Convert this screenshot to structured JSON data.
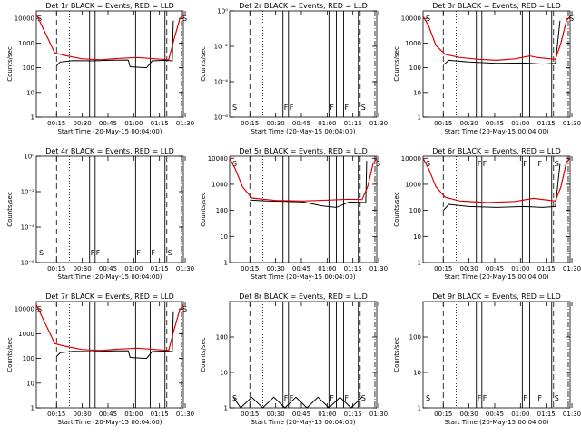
{
  "figure": {
    "background": "#ffffff",
    "axis_color": "#000000",
    "events_color": "#000000",
    "lld_color": "#dd0000",
    "xlabel": "Start Time (20-May-15 00:04:00)",
    "ylabel": "Counts/sec"
  },
  "chart_data": [
    {
      "type": "line",
      "panel": "det1",
      "title": "Det 1r BLACK = Events, RED = LLD",
      "yscale": "log",
      "ylim": [
        1,
        20000
      ],
      "ytick_values": [
        1,
        10,
        100,
        1000,
        10000
      ],
      "ytick_labels": [
        "1",
        "10",
        "100",
        "1000",
        "10000"
      ],
      "xtick_labels": [
        "00:15",
        "00:30",
        "00:45",
        "01:00",
        "01:15",
        "01:30"
      ],
      "flags": [
        {
          "label": "S",
          "x": 0
        },
        {
          "label": "S",
          "x": 79
        }
      ],
      "events": [
        {
          "x": 11,
          "y": 120
        },
        {
          "x": 13,
          "y": 170
        },
        {
          "x": 20,
          "y": 195
        },
        {
          "x": 30,
          "y": 190
        },
        {
          "x": 40,
          "y": 200
        },
        {
          "x": 50,
          "y": 205
        },
        {
          "x": 51,
          "y": 110
        },
        {
          "x": 60,
          "y": 100
        },
        {
          "x": 63,
          "y": 190
        },
        {
          "x": 70,
          "y": 200
        },
        {
          "x": 74,
          "y": 190
        },
        {
          "x": 74.5,
          "y": 8000
        }
      ],
      "lld": [
        {
          "x": 0,
          "y": 15000
        },
        {
          "x": 3,
          "y": 5000
        },
        {
          "x": 7,
          "y": 1200
        },
        {
          "x": 10,
          "y": 400
        },
        {
          "x": 15,
          "y": 320
        },
        {
          "x": 25,
          "y": 230
        },
        {
          "x": 35,
          "y": 210
        },
        {
          "x": 45,
          "y": 240
        },
        {
          "x": 55,
          "y": 260
        },
        {
          "x": 65,
          "y": 230
        },
        {
          "x": 72,
          "y": 210
        },
        {
          "x": 75,
          "y": 1500
        },
        {
          "x": 78,
          "y": 9000
        },
        {
          "x": 80,
          "y": 15000
        }
      ]
    },
    {
      "type": "line",
      "panel": "det2",
      "title": "Det 2r BLACK = Events, RED = LLD",
      "yscale": "log",
      "ylim": [
        1,
        1e-06
      ],
      "ytick_values": [
        1,
        0.01,
        0.0001,
        1e-06
      ],
      "ytick_labels": [
        "10⁰",
        "10⁻²",
        "10⁻⁴",
        "10⁻⁶"
      ],
      "xtick_labels": [
        "00:15",
        "00:30",
        "00:45",
        "01:00",
        "01:15",
        "01:30"
      ],
      "flags": [
        {
          "label": "S",
          "x": 1
        },
        {
          "label": "F",
          "x": 29
        },
        {
          "label": "F",
          "x": 32
        },
        {
          "label": "F",
          "x": 54
        },
        {
          "label": "F",
          "x": 62
        },
        {
          "label": "S",
          "x": 71
        }
      ],
      "events": [],
      "lld": []
    },
    {
      "type": "line",
      "panel": "det3",
      "title": "Det 3r BLACK = Events, RED = LLD",
      "yscale": "log",
      "ylim": [
        1,
        20000
      ],
      "ytick_values": [
        1,
        10,
        100,
        1000,
        10000
      ],
      "ytick_labels": [
        "1",
        "10",
        "100",
        "1000",
        "10000"
      ],
      "xtick_labels": [
        "00:15",
        "00:30",
        "00:45",
        "01:00",
        "01:15",
        "01:30"
      ],
      "flags": [
        {
          "label": "S",
          "x": 1
        },
        {
          "label": "S",
          "x": 79
        }
      ],
      "events": [
        {
          "x": 11,
          "y": 130
        },
        {
          "x": 14,
          "y": 200
        },
        {
          "x": 25,
          "y": 170
        },
        {
          "x": 40,
          "y": 150
        },
        {
          "x": 55,
          "y": 155
        },
        {
          "x": 65,
          "y": 140
        },
        {
          "x": 72,
          "y": 150
        },
        {
          "x": 74.5,
          "y": 8000
        }
      ],
      "lld": [
        {
          "x": 0,
          "y": 12000
        },
        {
          "x": 3,
          "y": 5000
        },
        {
          "x": 7,
          "y": 800
        },
        {
          "x": 12,
          "y": 350
        },
        {
          "x": 20,
          "y": 260
        },
        {
          "x": 30,
          "y": 220
        },
        {
          "x": 40,
          "y": 200
        },
        {
          "x": 50,
          "y": 230
        },
        {
          "x": 58,
          "y": 300
        },
        {
          "x": 62,
          "y": 260
        },
        {
          "x": 72,
          "y": 220
        },
        {
          "x": 75,
          "y": 1000
        },
        {
          "x": 78,
          "y": 8000
        },
        {
          "x": 80,
          "y": 12000
        }
      ]
    },
    {
      "type": "line",
      "panel": "det4",
      "title": "Det 4r BLACK = Events, RED = LLD",
      "yscale": "log",
      "ylim": [
        1,
        1e-06
      ],
      "ytick_values": [
        1,
        0.01,
        0.0001,
        1e-06
      ],
      "ytick_labels": [
        "10⁰",
        "10⁻²",
        "10⁻⁴",
        "10⁻⁶"
      ],
      "xtick_labels": [
        "00:15",
        "00:30",
        "00:45",
        "01:00",
        "01:15",
        "01:30"
      ],
      "flags": [
        {
          "label": "S",
          "x": 1
        },
        {
          "label": "F",
          "x": 29
        },
        {
          "label": "F",
          "x": 32
        },
        {
          "label": "F",
          "x": 54
        },
        {
          "label": "F",
          "x": 62
        },
        {
          "label": "S",
          "x": 71
        }
      ],
      "events": [],
      "lld": []
    },
    {
      "type": "line",
      "panel": "det5",
      "title": "Det 5r BLACK = Events, RED = LLD",
      "yscale": "log",
      "ylim": [
        1,
        12000
      ],
      "ytick_values": [
        1,
        10,
        100,
        1000,
        10000
      ],
      "ytick_labels": [
        "1",
        "10",
        "100",
        "1000",
        "10000"
      ],
      "xtick_labels": [
        "00:15",
        "00:30",
        "00:45",
        "01:00",
        "01:15",
        "01:30"
      ],
      "flags": [
        {
          "label": "S",
          "x": 1
        },
        {
          "label": "S",
          "x": 79
        }
      ],
      "events": [
        {
          "x": 11,
          "y": 250
        },
        {
          "x": 20,
          "y": 230
        },
        {
          "x": 30,
          "y": 220
        },
        {
          "x": 40,
          "y": 210
        },
        {
          "x": 50,
          "y": 150
        },
        {
          "x": 58,
          "y": 130
        },
        {
          "x": 65,
          "y": 210
        },
        {
          "x": 74,
          "y": 200
        },
        {
          "x": 74.5,
          "y": 8000
        }
      ],
      "lld": [
        {
          "x": 0,
          "y": 10000
        },
        {
          "x": 3,
          "y": 4000
        },
        {
          "x": 7,
          "y": 800
        },
        {
          "x": 12,
          "y": 300
        },
        {
          "x": 25,
          "y": 240
        },
        {
          "x": 40,
          "y": 230
        },
        {
          "x": 55,
          "y": 250
        },
        {
          "x": 65,
          "y": 270
        },
        {
          "x": 72,
          "y": 260
        },
        {
          "x": 75,
          "y": 800
        },
        {
          "x": 78,
          "y": 6000
        },
        {
          "x": 80,
          "y": 10000
        }
      ]
    },
    {
      "type": "line",
      "panel": "det6",
      "title": "Det 6r BLACK = Events, RED = LLD",
      "yscale": "log",
      "ylim": [
        1,
        12000
      ],
      "ytick_values": [
        1,
        10,
        100,
        1000,
        10000
      ],
      "ytick_labels": [
        "1",
        "10",
        "100",
        "1000",
        "10000"
      ],
      "xtick_labels": [
        "00:15",
        "00:30",
        "00:45",
        "01:00",
        "01:15",
        "01:30"
      ],
      "flags": [
        {
          "label": "S",
          "x": 1
        },
        {
          "label": "F",
          "x": 29
        },
        {
          "label": "F",
          "x": 32
        },
        {
          "label": "F",
          "x": 54
        },
        {
          "label": "F",
          "x": 62
        },
        {
          "label": "S",
          "x": 71
        }
      ],
      "events": [
        {
          "x": 11,
          "y": 100
        },
        {
          "x": 14,
          "y": 170
        },
        {
          "x": 25,
          "y": 140
        },
        {
          "x": 40,
          "y": 130
        },
        {
          "x": 55,
          "y": 140
        },
        {
          "x": 65,
          "y": 130
        },
        {
          "x": 72,
          "y": 140
        },
        {
          "x": 74.5,
          "y": 6000
        }
      ],
      "lld": [
        {
          "x": 0,
          "y": 10000
        },
        {
          "x": 3,
          "y": 4000
        },
        {
          "x": 7,
          "y": 800
        },
        {
          "x": 12,
          "y": 320
        },
        {
          "x": 20,
          "y": 230
        },
        {
          "x": 35,
          "y": 200
        },
        {
          "x": 50,
          "y": 220
        },
        {
          "x": 60,
          "y": 290
        },
        {
          "x": 72,
          "y": 230
        },
        {
          "x": 75,
          "y": 800
        },
        {
          "x": 78,
          "y": 7000
        },
        {
          "x": 80,
          "y": 10000
        }
      ]
    },
    {
      "type": "line",
      "panel": "det7",
      "title": "Det 7r BLACK = Events, RED = LLD",
      "yscale": "log",
      "ylim": [
        1,
        20000
      ],
      "ytick_values": [
        1,
        10,
        100,
        1000,
        10000
      ],
      "ytick_labels": [
        "1",
        "10",
        "100",
        "1000",
        "10000"
      ],
      "xtick_labels": [
        "00:15",
        "00:30",
        "00:45",
        "01:00",
        "01:15",
        "01:30"
      ],
      "flags": [
        {
          "label": "S",
          "x": 0
        },
        {
          "label": "S",
          "x": 79
        }
      ],
      "events": [
        {
          "x": 11,
          "y": 120
        },
        {
          "x": 13,
          "y": 170
        },
        {
          "x": 20,
          "y": 195
        },
        {
          "x": 30,
          "y": 190
        },
        {
          "x": 40,
          "y": 200
        },
        {
          "x": 50,
          "y": 205
        },
        {
          "x": 51,
          "y": 110
        },
        {
          "x": 60,
          "y": 100
        },
        {
          "x": 63,
          "y": 190
        },
        {
          "x": 70,
          "y": 200
        },
        {
          "x": 74,
          "y": 190
        },
        {
          "x": 74.5,
          "y": 8000
        }
      ],
      "lld": [
        {
          "x": 0,
          "y": 15000
        },
        {
          "x": 3,
          "y": 5000
        },
        {
          "x": 7,
          "y": 1200
        },
        {
          "x": 10,
          "y": 400
        },
        {
          "x": 15,
          "y": 320
        },
        {
          "x": 25,
          "y": 230
        },
        {
          "x": 35,
          "y": 210
        },
        {
          "x": 45,
          "y": 240
        },
        {
          "x": 55,
          "y": 260
        },
        {
          "x": 65,
          "y": 230
        },
        {
          "x": 72,
          "y": 210
        },
        {
          "x": 75,
          "y": 1500
        },
        {
          "x": 78,
          "y": 9000
        },
        {
          "x": 80,
          "y": 15000
        }
      ]
    },
    {
      "type": "line",
      "panel": "det8",
      "title": "Det 8r BLACK = Events, RED = LLD",
      "yscale": "log",
      "ylim": [
        1,
        1000
      ],
      "ytick_values": [
        1,
        10,
        100
      ],
      "ytick_labels": [
        "1",
        "10",
        "100"
      ],
      "xtick_labels": [
        "00:15",
        "00:30",
        "00:45",
        "01:00",
        "01:15",
        "01:30"
      ],
      "flags": [
        {
          "label": "S",
          "x": 1
        },
        {
          "label": "F",
          "x": 29
        },
        {
          "label": "F",
          "x": 32
        },
        {
          "label": "F",
          "x": 54
        },
        {
          "label": "F",
          "x": 62
        },
        {
          "label": "S",
          "x": 71
        }
      ],
      "events": [
        {
          "x": 2,
          "y": 2
        },
        {
          "x": 6,
          "y": 1
        },
        {
          "x": 12,
          "y": 2
        },
        {
          "x": 18,
          "y": 1
        },
        {
          "x": 24,
          "y": 2
        },
        {
          "x": 30,
          "y": 1
        },
        {
          "x": 36,
          "y": 2
        },
        {
          "x": 42,
          "y": 1
        },
        {
          "x": 48,
          "y": 2
        },
        {
          "x": 54,
          "y": 1
        },
        {
          "x": 60,
          "y": 2
        },
        {
          "x": 66,
          "y": 1
        },
        {
          "x": 72,
          "y": 2
        }
      ],
      "lld": []
    },
    {
      "type": "line",
      "panel": "det9",
      "title": "Det 9r BLACK = Events, RED = LLD",
      "yscale": "log",
      "ylim": [
        1,
        1000
      ],
      "ytick_values": [
        1,
        10,
        100
      ],
      "ytick_labels": [
        "1",
        "10",
        "100"
      ],
      "xtick_labels": [
        "00:15",
        "00:30",
        "00:45",
        "01:00",
        "01:15",
        "01:30"
      ],
      "flags": [
        {
          "label": "S",
          "x": 1
        },
        {
          "label": "F",
          "x": 29
        },
        {
          "label": "F",
          "x": 32
        },
        {
          "label": "F",
          "x": 54
        },
        {
          "label": "F",
          "x": 62
        },
        {
          "label": "S",
          "x": 71
        }
      ],
      "events": [],
      "lld": []
    }
  ]
}
